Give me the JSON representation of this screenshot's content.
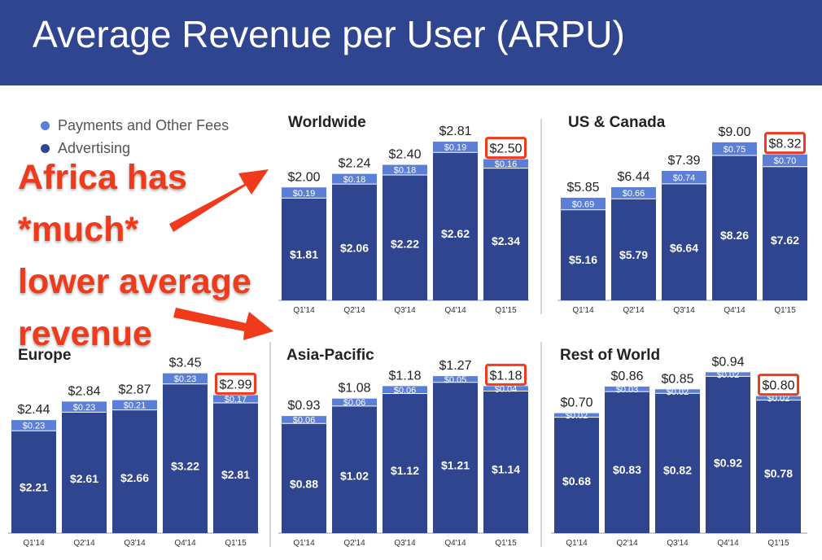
{
  "header": {
    "title": "Average Revenue per User (ARPU)"
  },
  "legend": [
    {
      "label": "Payments and Other Fees",
      "color": "#5b7fd6"
    },
    {
      "label": "Advertising",
      "color": "#30458f"
    }
  ],
  "annotation": {
    "lines": [
      "Africa has",
      "*much*",
      "lower average",
      "revenue"
    ],
    "color": "#f03a1c"
  },
  "chart_data": [
    {
      "type": "bar",
      "title": "Worldwide",
      "stacked": true,
      "categories": [
        "Q1'14",
        "Q2'14",
        "Q3'14",
        "Q4'14",
        "Q1'15"
      ],
      "series": [
        {
          "name": "Advertising",
          "values": [
            1.81,
            2.06,
            2.22,
            2.62,
            2.34
          ],
          "labels": [
            "$1.81",
            "$2.06",
            "$2.22",
            "$2.62",
            "$2.34"
          ]
        },
        {
          "name": "Payments and Other Fees",
          "values": [
            0.19,
            0.18,
            0.18,
            0.19,
            0.16
          ],
          "labels": [
            "$0.19",
            "$0.18",
            "$0.18",
            "$0.19",
            "$0.16"
          ]
        }
      ],
      "totals": [
        2.0,
        2.24,
        2.4,
        2.81,
        2.5
      ],
      "total_labels": [
        "$2.00",
        "$2.24",
        "$2.40",
        "$2.81",
        "$2.50"
      ],
      "highlighted_index": 4,
      "ylim": [
        0,
        3.2
      ]
    },
    {
      "type": "bar",
      "title": "US & Canada",
      "stacked": true,
      "categories": [
        "Q1'14",
        "Q2'14",
        "Q3'14",
        "Q4'14",
        "Q1'15"
      ],
      "series": [
        {
          "name": "Advertising",
          "values": [
            5.16,
            5.79,
            6.64,
            8.26,
            7.62
          ],
          "labels": [
            "$5.16",
            "$5.79",
            "$6.64",
            "$8.26",
            "$7.62"
          ]
        },
        {
          "name": "Payments and Other Fees",
          "values": [
            0.69,
            0.66,
            0.74,
            0.75,
            0.7
          ],
          "labels": [
            "$0.69",
            "$0.66",
            "$0.74",
            "$0.75",
            "$0.70"
          ]
        }
      ],
      "totals": [
        5.85,
        6.44,
        7.39,
        9.0,
        8.32
      ],
      "total_labels": [
        "$5.85",
        "$6.44",
        "$7.39",
        "$9.00",
        "$8.32"
      ],
      "highlighted_index": 4,
      "ylim": [
        0,
        10.3
      ]
    },
    {
      "type": "bar",
      "title": "Europe",
      "stacked": true,
      "categories": [
        "Q1'14",
        "Q2'14",
        "Q3'14",
        "Q4'14",
        "Q1'15"
      ],
      "series": [
        {
          "name": "Advertising",
          "values": [
            2.21,
            2.61,
            2.66,
            3.22,
            2.81
          ],
          "labels": [
            "$2.21",
            "$2.61",
            "$2.66",
            "$3.22",
            "$2.81"
          ]
        },
        {
          "name": "Payments and Other Fees",
          "values": [
            0.23,
            0.23,
            0.21,
            0.23,
            0.17
          ],
          "labels": [
            "$0.23",
            "$0.23",
            "$0.21",
            "$0.23",
            "$0.17"
          ]
        }
      ],
      "totals": [
        2.44,
        2.84,
        2.87,
        3.45,
        2.99
      ],
      "total_labels": [
        "$2.44",
        "$2.84",
        "$2.87",
        "$3.45",
        "$2.99"
      ],
      "highlighted_index": 4,
      "ylim": [
        0,
        3.9
      ]
    },
    {
      "type": "bar",
      "title": "Asia-Pacific",
      "stacked": true,
      "categories": [
        "Q1'14",
        "Q2'14",
        "Q3'14",
        "Q4'14",
        "Q1'15"
      ],
      "series": [
        {
          "name": "Advertising",
          "values": [
            0.88,
            1.02,
            1.12,
            1.21,
            1.14
          ],
          "labels": [
            "$0.88",
            "$1.02",
            "$1.12",
            "$1.21",
            "$1.14"
          ]
        },
        {
          "name": "Payments and Other Fees",
          "values": [
            0.06,
            0.06,
            0.06,
            0.05,
            0.04
          ],
          "labels": [
            "$0.06",
            "$0.06",
            "$0.06",
            "$0.05",
            "$0.04"
          ]
        }
      ],
      "totals": [
        0.93,
        1.08,
        1.18,
        1.27,
        1.18
      ],
      "total_labels": [
        "$0.93",
        "$1.08",
        "$1.18",
        "$1.27",
        "$1.18"
      ],
      "highlighted_index": 4,
      "ylim": [
        0,
        1.45
      ]
    },
    {
      "type": "bar",
      "title": "Rest of World",
      "stacked": true,
      "categories": [
        "Q1'14",
        "Q2'14",
        "Q3'14",
        "Q4'14",
        "Q1'15"
      ],
      "series": [
        {
          "name": "Advertising",
          "values": [
            0.68,
            0.83,
            0.82,
            0.92,
            0.78
          ],
          "labels": [
            "$0.68",
            "$0.83",
            "$0.82",
            "$0.92",
            "$0.78"
          ]
        },
        {
          "name": "Payments and Other Fees",
          "values": [
            0.02,
            0.03,
            0.02,
            0.02,
            0.02
          ],
          "labels": [
            "$0.02",
            "$0.03",
            "$0.02",
            "$0.02",
            "$0.02"
          ]
        }
      ],
      "totals": [
        0.7,
        0.86,
        0.85,
        0.94,
        0.8
      ],
      "total_labels": [
        "$0.70",
        "$0.86",
        "$0.85",
        "$0.94",
        "$0.80"
      ],
      "highlighted_index": 4,
      "ylim": [
        0,
        1.06
      ]
    }
  ],
  "colors": {
    "header": "#30458f",
    "advertising": "#30458f",
    "payments": "#5b7fd6",
    "highlight": "#f03a1c"
  }
}
